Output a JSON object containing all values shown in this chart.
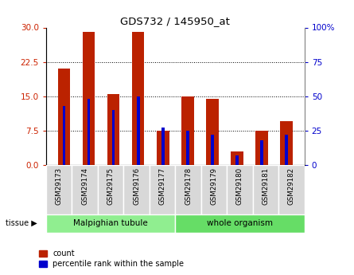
{
  "title": "GDS732 / 145950_at",
  "samples": [
    "GSM29173",
    "GSM29174",
    "GSM29175",
    "GSM29176",
    "GSM29177",
    "GSM29178",
    "GSM29179",
    "GSM29180",
    "GSM29181",
    "GSM29182"
  ],
  "count_values": [
    21,
    29,
    15.5,
    29,
    7.5,
    15,
    14.5,
    3,
    7.5,
    9.5
  ],
  "percentile_values": [
    43,
    48,
    40,
    50,
    27,
    25,
    22,
    7,
    18,
    22
  ],
  "tissue_groups": [
    {
      "label": "Malpighian tubule",
      "start": 0,
      "end": 5,
      "color": "#90ee90"
    },
    {
      "label": "whole organism",
      "start": 5,
      "end": 10,
      "color": "#66dd66"
    }
  ],
  "left_yticks": [
    0,
    7.5,
    15,
    22.5,
    30
  ],
  "right_yticks": [
    0,
    25,
    50,
    75,
    100
  ],
  "right_yticklabels": [
    "0",
    "25",
    "50",
    "75",
    "100%"
  ],
  "left_color": "#cc2200",
  "right_color": "#0000cc",
  "bar_red": "#bb2200",
  "bar_blue": "#0000cc",
  "bg_color": "#ffffff",
  "tissue_label": "tissue",
  "legend_count": "count",
  "legend_pct": "percentile rank within the sample"
}
